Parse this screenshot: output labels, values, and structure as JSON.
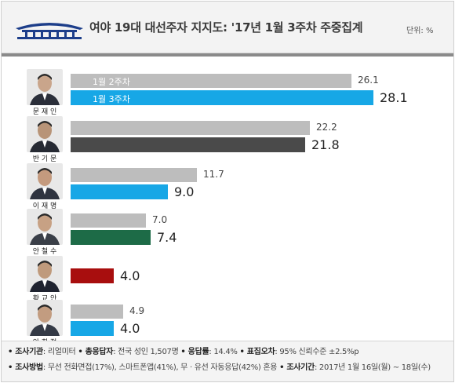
{
  "header": {
    "title": "여야 19대 대선주자 지지도: '17년 1월 3주차 주중집계",
    "unit": "단위: %"
  },
  "chart_data": {
    "type": "bar",
    "title": "여야 19대 대선주자 지지도: '17년 1월 3주차 주중집계",
    "unit": "%",
    "series": [
      {
        "name": "1월 2주차",
        "values": [
          26.1,
          22.2,
          11.7,
          7.0,
          null,
          4.9
        ]
      },
      {
        "name": "1월 3주차",
        "values": [
          28.1,
          21.8,
          9.0,
          7.4,
          4.0,
          4.0
        ]
      }
    ],
    "categories": [
      "문재인",
      "반기문",
      "이재명",
      "안철수",
      "황교안",
      "안희정"
    ],
    "labels_prev": [
      "26.1",
      "22.2",
      "11.7",
      "7.0",
      "",
      "4.9"
    ],
    "labels_cur": [
      "28.1",
      "21.8",
      "9.0",
      "7.4",
      "4.0",
      "4.0"
    ],
    "max": 30,
    "colors": {
      "previous": "#bdbdbd",
      "current": [
        "#17a7e6",
        "#4a4a4a",
        "#17a7e6",
        "#1d6b47",
        "#a80e0e",
        "#17a7e6"
      ],
      "accent": "#17a7e6"
    }
  },
  "people": [
    {
      "name": "문 재 인",
      "tone": "#c9a58b",
      "suit": "#2b2f3a"
    },
    {
      "name": "반 기 문",
      "tone": "#b89478",
      "suit": "#262a33"
    },
    {
      "name": "이 재 명",
      "tone": "#c49a7e",
      "suit": "#2f3440"
    },
    {
      "name": "안 철 수",
      "tone": "#c7a184",
      "suit": "#3a3f48"
    },
    {
      "name": "황 교 안",
      "tone": "#bf9a7c",
      "suit": "#1f2330"
    },
    {
      "name": "안 희 정",
      "tone": "#c29c80",
      "suit": "#343a46"
    }
  ],
  "footer": {
    "line1": [
      {
        "k": "• 조사기관",
        "v": ": 리얼미터 "
      },
      {
        "k": "• 총응답자",
        "v": ": 전국 성인 1,507명 "
      },
      {
        "k": "• 응답률",
        "v": ": 14.4% "
      },
      {
        "k": "• 표집오차",
        "v": ": 95% 신뢰수준 ±2.5%p"
      }
    ],
    "line2": [
      {
        "k": "• 조사방법",
        "v": ": 무선 전화면접(17%), 스마트폰앱(41%), 무 · 유선 자동응답(42%) 혼용 "
      },
      {
        "k": "• 조사기간",
        "v": ": 2017년 1월 16일(월) ~ 18일(수)"
      }
    ]
  }
}
